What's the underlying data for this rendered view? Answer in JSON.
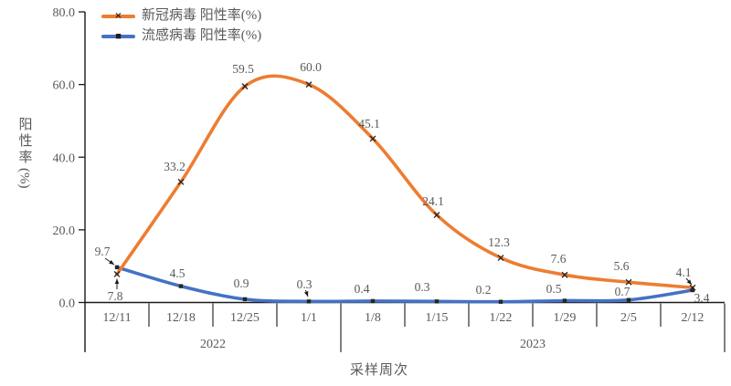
{
  "chart_data": {
    "type": "line",
    "title": "",
    "xlabel": "采样周次",
    "ylabel": "阳性率",
    "ylabel_unit": "(%)",
    "ylim": [
      0,
      80
    ],
    "ytick_step": 20,
    "ytick_labels": [
      "0.0",
      "20.0",
      "40.0",
      "60.0",
      "80.0"
    ],
    "grid": false,
    "legend_position": "top-left",
    "categories": [
      "12/11",
      "12/18",
      "12/25",
      "1/1",
      "1/8",
      "1/15",
      "1/22",
      "1/29",
      "2/5",
      "2/12"
    ],
    "year_groups": [
      {
        "label": "2022",
        "start": 0,
        "end": 3
      },
      {
        "label": "2023",
        "start": 4,
        "end": 9
      }
    ],
    "series": [
      {
        "name": "新冠病毒 阳性率(%)",
        "color": "#ED7D31",
        "marker": "x",
        "values": [
          7.8,
          33.2,
          59.5,
          60.0,
          45.1,
          24.1,
          12.3,
          7.6,
          5.6,
          4.1
        ]
      },
      {
        "name": "流感病毒 阳性率(%)",
        "color": "#4472C4",
        "marker": "square",
        "values": [
          9.7,
          4.5,
          0.9,
          0.3,
          0.4,
          0.3,
          0.2,
          0.5,
          0.7,
          3.4
        ]
      }
    ]
  },
  "icons": {
    "covid_legend_marker": "×",
    "flu_legend_marker": "■"
  },
  "colors": {
    "covid": "#ED7D31",
    "flu": "#4472C4",
    "text": "#595959",
    "marker": "#262626",
    "axis": "#1a1a1a"
  }
}
